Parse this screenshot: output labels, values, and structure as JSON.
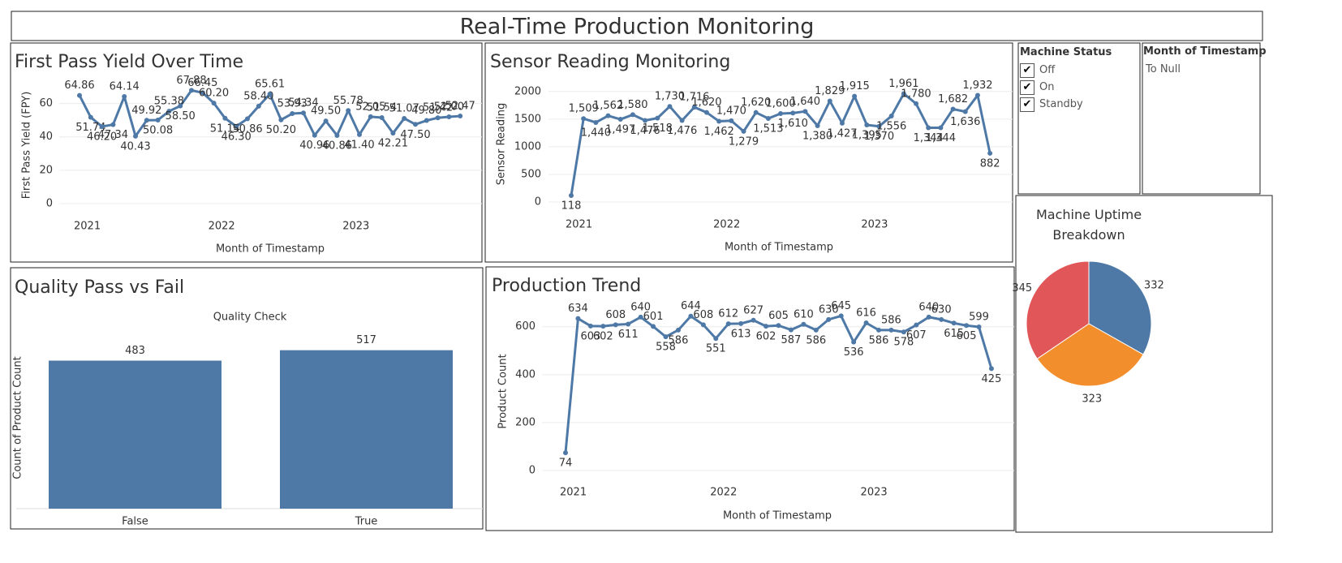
{
  "title": "Real-Time Production Monitoring",
  "filters": [
    {
      "title": "Machine Status",
      "options": [
        "Off",
        "On",
        "Standby"
      ]
    },
    {
      "title": "Month of Timestamp",
      "options": [
        "To Null"
      ]
    }
  ],
  "chart_data": [
    {
      "type": "line",
      "title": "First Pass Yield Over Time",
      "x_label": "Month of Timestamp",
      "y_label": "First Pass Yield (FPY)",
      "categories": [
        "2021",
        null,
        null,
        null,
        null,
        null,
        null,
        null,
        null,
        null,
        null,
        null,
        "2022",
        null,
        null,
        null,
        null,
        null,
        null,
        null,
        null,
        null,
        null,
        null,
        "2023",
        null,
        null,
        null,
        null,
        null,
        null,
        null,
        null,
        null,
        null
      ],
      "values": [
        64.86,
        51.74,
        46.2,
        47.34,
        64.14,
        40.43,
        49.92,
        50.08,
        55.38,
        58.5,
        67.88,
        66.45,
        60.2,
        51.14,
        46.3,
        50.86,
        58.4,
        65.61,
        50.2,
        53.93,
        54.34,
        40.96,
        49.5,
        40.86,
        55.78,
        41.4,
        52.05,
        51.54,
        42.21,
        51.07,
        47.5,
        49.8,
        51.42,
        52,
        52.47
      ],
      "value_labels": [
        "64.86",
        "51.74",
        "46.20",
        "47.34",
        "64.14",
        "40.43",
        "49.92",
        "50.08",
        "55.38",
        "58.50",
        "67.88",
        "66.45",
        "60.20",
        "51.14",
        "46.30",
        "50.86",
        "58.40",
        "65.61",
        "50.20",
        "53.93",
        "54.34",
        "40.96",
        "49.50",
        "40.86",
        "55.78",
        "41.40",
        "52.05",
        "51.54",
        "42.21",
        "51.07",
        "47.50",
        "49.80",
        "51.42",
        "52.00",
        "52.47"
      ],
      "color": "#4e79a7",
      "ylim": [
        0,
        70
      ],
      "yticks": [
        0,
        20,
        40,
        60
      ],
      "grid": true
    },
    {
      "type": "line",
      "title": "Sensor Reading Monitoring",
      "x_label": "Month of Timestamp",
      "y_label": "Sensor Reading",
      "categories": [
        "2021",
        null,
        null,
        null,
        null,
        null,
        null,
        null,
        null,
        null,
        null,
        null,
        "2022",
        null,
        null,
        null,
        null,
        null,
        null,
        null,
        null,
        null,
        null,
        null,
        "2023",
        null,
        null,
        null,
        null,
        null,
        null,
        null,
        null,
        null,
        null
      ],
      "values": [
        118,
        1509,
        1440,
        1562,
        1497,
        1580,
        1476,
        1518,
        1730,
        1476,
        1716,
        1620,
        1462,
        1470,
        1279,
        1620,
        1513,
        1600,
        1610,
        1640,
        1380,
        1829,
        1427,
        1915,
        1395,
        1370,
        1556,
        1961,
        1780,
        1344,
        1344,
        1682,
        1636,
        1932,
        882
      ],
      "value_labels": [
        "118",
        "1,509",
        "1,440",
        "1,562",
        "1,497",
        "1,580",
        "1,476",
        "1,518",
        "1,730",
        "1,476",
        "1,716",
        "1,620",
        "1,462",
        "1,470",
        "1,279",
        "1,620",
        "1,513",
        "1,600",
        "1,610",
        "1,640",
        "1,380",
        "1,829",
        "1,427",
        "1,915",
        "1,395",
        "1,370",
        "1,556",
        "1,961",
        "1,780",
        "1,344",
        "1,344",
        "1,682",
        "1,636",
        "1,932",
        "882"
      ],
      "color": "#4e79a7",
      "ylim": [
        0,
        2100
      ],
      "yticks": [
        0,
        500,
        1000,
        1500,
        2000
      ],
      "grid": true
    },
    {
      "type": "bar",
      "title": "Quality Pass vs Fail",
      "subtitle": "Quality Check",
      "y_label": "Count of Product Count",
      "categories": [
        "False",
        "True"
      ],
      "values": [
        483,
        517
      ],
      "color": "#4e79a7",
      "ylim": [
        0,
        540
      ]
    },
    {
      "type": "line",
      "title": "Production Trend",
      "x_label": "Month of Timestamp",
      "y_label": "Product Count",
      "categories": [
        "2021",
        null,
        null,
        null,
        null,
        null,
        null,
        null,
        null,
        null,
        null,
        null,
        "2022",
        null,
        null,
        null,
        null,
        null,
        null,
        null,
        null,
        null,
        null,
        null,
        "2023",
        null,
        null,
        null,
        null,
        null,
        null,
        null,
        null,
        null,
        null
      ],
      "values": [
        74,
        634,
        603,
        602,
        608,
        611,
        640,
        601,
        558,
        586,
        644,
        608,
        551,
        612,
        613,
        627,
        602,
        605,
        587,
        610,
        586,
        630,
        645,
        536,
        616,
        586,
        586,
        578,
        607,
        640,
        630,
        615,
        605,
        599,
        425
      ],
      "color": "#4e79a7",
      "ylim": [
        0,
        660
      ],
      "yticks": [
        0,
        200,
        400,
        600
      ],
      "grid": true
    },
    {
      "type": "pie",
      "title": "Machine Uptime Breakdown",
      "values": [
        332,
        323,
        345
      ],
      "colors": [
        "#4e79a7",
        "#f28e2b",
        "#e15759"
      ]
    }
  ]
}
